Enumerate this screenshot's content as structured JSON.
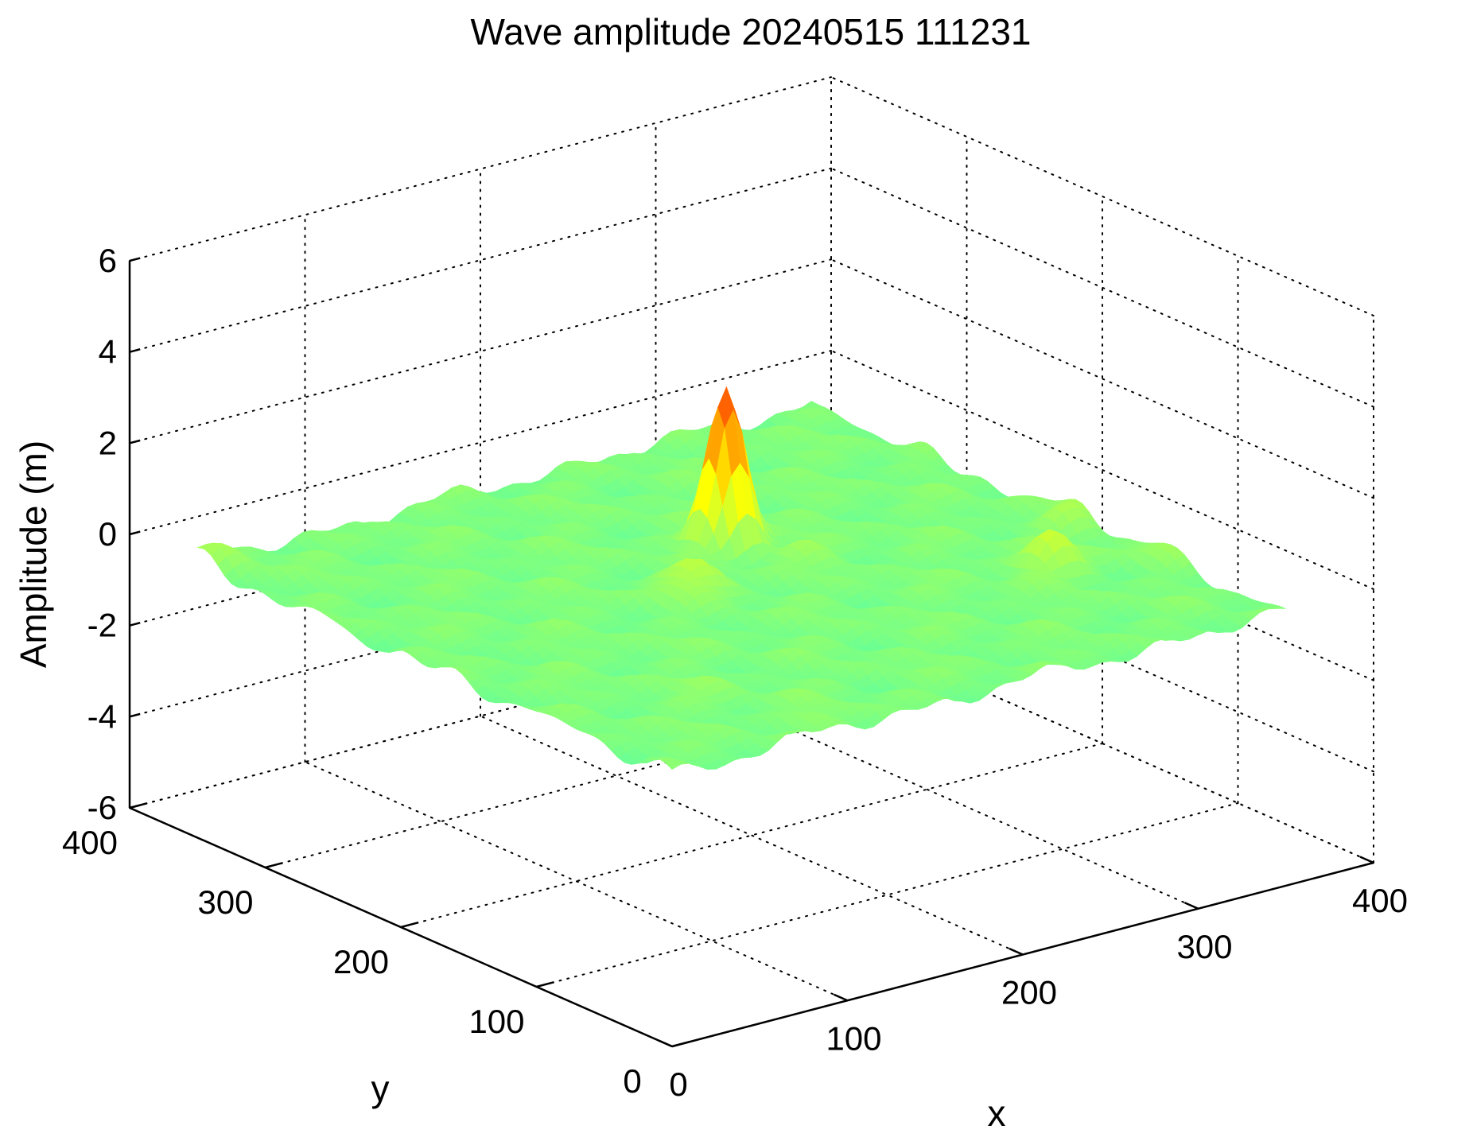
{
  "chart_data": {
    "type": "surface",
    "title": "Wave amplitude 20240515 111231",
    "xlabel": "x",
    "ylabel": "y",
    "zlabel": "Amplitude (m)",
    "xlim": [
      0,
      400
    ],
    "ylim": [
      0,
      400
    ],
    "zlim": [
      -6,
      6
    ],
    "xticks": [
      "0",
      "100",
      "200",
      "300",
      "400"
    ],
    "yticks": [
      "0",
      "100",
      "200",
      "300",
      "400"
    ],
    "zticks": [
      "-6",
      "-4",
      "-2",
      "0",
      "2",
      "4",
      "6"
    ],
    "grid": true,
    "colormap": "jet",
    "surface_range": [
      0,
      350
    ],
    "baseline_amplitude": 0,
    "peaks": [
      {
        "x": 205,
        "y": 225,
        "amplitude": 3.5
      },
      {
        "x": 155,
        "y": 185,
        "amplitude": 0.7
      },
      {
        "x": 300,
        "y": 110,
        "amplitude": 0.8
      },
      {
        "x": 345,
        "y": 150,
        "amplitude": 0.5
      },
      {
        "x": 355,
        "y": 95,
        "amplitude": 0.35
      },
      {
        "x": 225,
        "y": 190,
        "amplitude": 0.25
      },
      {
        "x": 95,
        "y": 20,
        "amplitude": 0.2
      },
      {
        "x": 75,
        "y": 70,
        "amplitude": 0.15
      },
      {
        "x": 10,
        "y": 340,
        "amplitude": 0.3
      }
    ]
  }
}
